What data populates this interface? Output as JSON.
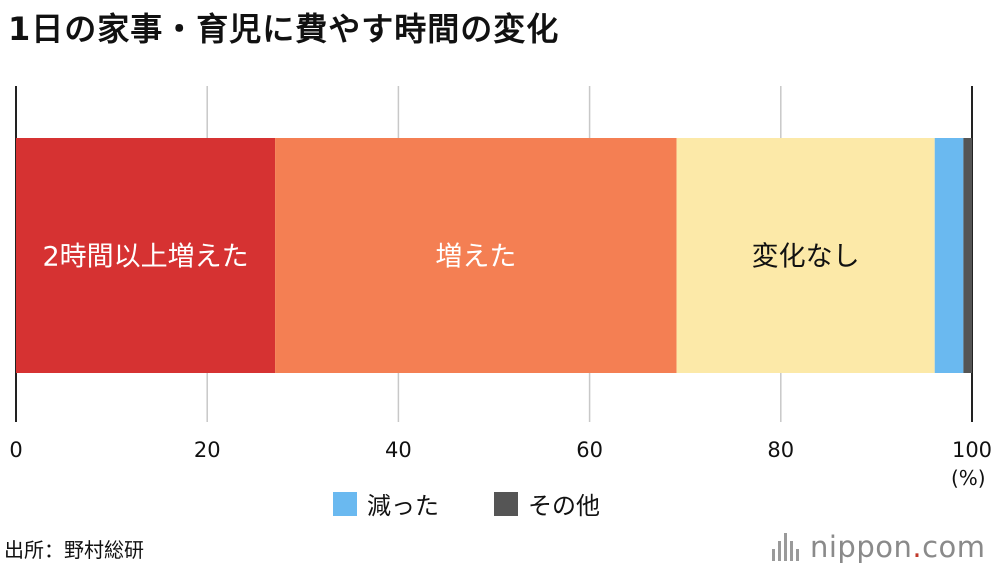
{
  "title": "1日の家事・育児に費やす時間の変化",
  "chart_data": {
    "type": "bar",
    "orientation": "horizontal-stacked-100",
    "xlim": [
      0,
      100
    ],
    "xticks": [
      "0",
      "20",
      "40",
      "60",
      "80",
      "100"
    ],
    "unit_label": "(%)",
    "grid": true,
    "series": [
      {
        "name": "2時間以上増えた",
        "value": 27.1,
        "color": "#d63232",
        "label": "2時間以上増えた",
        "label_color": "#ffffff"
      },
      {
        "name": "増えた",
        "value": 42.0,
        "color": "#f47f53",
        "label": "増えた",
        "label_color": "#ffffff"
      },
      {
        "name": "変化なし",
        "value": 27.0,
        "color": "#fce9a8",
        "label": "変化なし",
        "label_color": "#111111"
      },
      {
        "name": "減った",
        "value": 3.0,
        "color": "#6ab9f0",
        "label": "",
        "label_color": "#111111"
      },
      {
        "name": "その他",
        "value": 0.9,
        "color": "#555555",
        "label": "",
        "label_color": "#ffffff"
      }
    ],
    "legend": {
      "placement": "bottom",
      "items": [
        "減った",
        "その他"
      ]
    }
  },
  "legend": [
    {
      "label": "減った",
      "color": "#6ab9f0"
    },
    {
      "label": "その他",
      "color": "#555555"
    }
  ],
  "source": "出所：野村総研",
  "logo": {
    "text_main": "nippon",
    "text_dot": ".",
    "text_tail": "com",
    "accent": "#c0392b"
  }
}
